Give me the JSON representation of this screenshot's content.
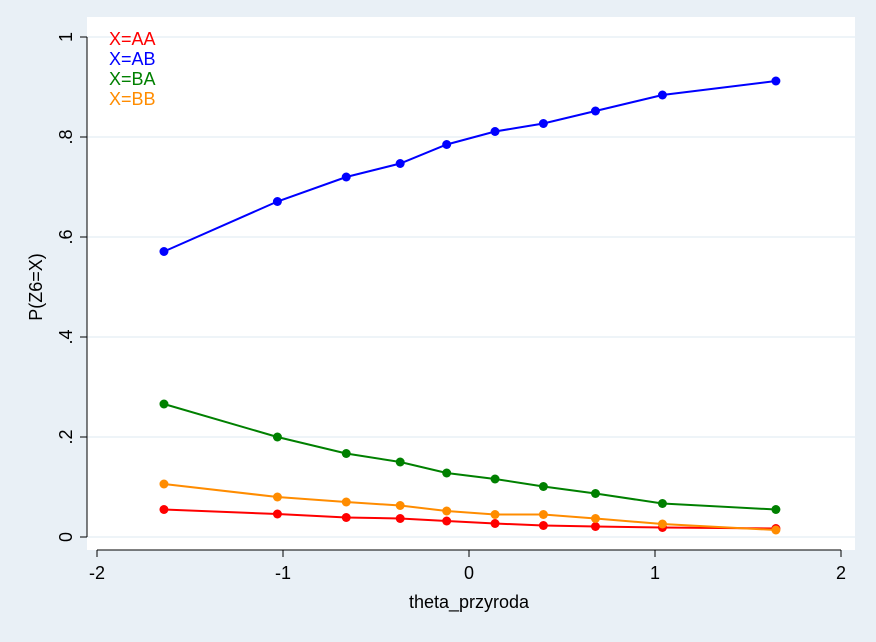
{
  "chart_data": {
    "type": "line",
    "title": "",
    "xlabel": "theta_przyroda",
    "ylabel": "P(Z6=X)",
    "xlim": [
      -2,
      2
    ],
    "ylim": [
      0,
      1
    ],
    "xticks": [
      -2,
      -1,
      0,
      1,
      2
    ],
    "xtick_labels": [
      "-2",
      "-1",
      "0",
      "1",
      "2"
    ],
    "yticks": [
      0,
      0.2,
      0.4,
      0.6,
      0.8,
      1
    ],
    "ytick_labels": [
      "0",
      ".2",
      ".4",
      ".6",
      ".8",
      "1"
    ],
    "grid": "horizontal",
    "legend_position": "top-left",
    "x": [
      -1.64,
      -1.03,
      -0.66,
      -0.37,
      -0.12,
      0.14,
      0.4,
      0.68,
      1.04,
      1.65
    ],
    "series": [
      {
        "name": "X=AA",
        "color": "#ff0000",
        "values": [
          0.055,
          0.046,
          0.039,
          0.037,
          0.032,
          0.027,
          0.023,
          0.021,
          0.019,
          0.017
        ]
      },
      {
        "name": "X=AB",
        "color": "#0000ff",
        "values": [
          0.571,
          0.671,
          0.72,
          0.747,
          0.785,
          0.811,
          0.827,
          0.852,
          0.884,
          0.912
        ]
      },
      {
        "name": "X=BA",
        "color": "#008000",
        "values": [
          0.266,
          0.2,
          0.167,
          0.15,
          0.128,
          0.116,
          0.101,
          0.087,
          0.067,
          0.055
        ]
      },
      {
        "name": "X=BB",
        "color": "#ff8c00",
        "values": [
          0.106,
          0.08,
          0.07,
          0.063,
          0.052,
          0.045,
          0.045,
          0.037,
          0.026,
          0.014
        ]
      }
    ]
  },
  "colors": {
    "page_background": "#e9f0f6",
    "plot_background": "#ffffff",
    "gridline": "#e9f0f6",
    "axis": "#000000"
  }
}
